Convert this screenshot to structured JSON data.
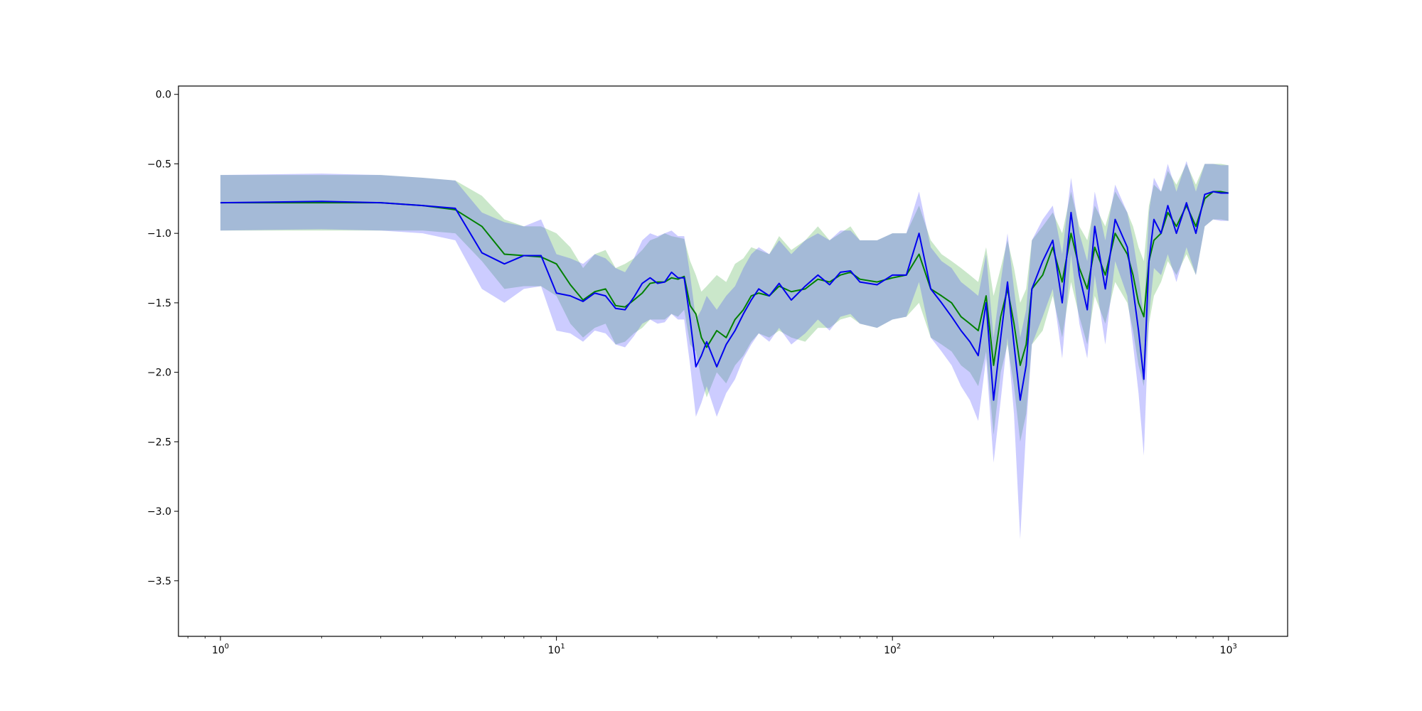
{
  "chart_data": {
    "type": "line",
    "title": "",
    "xlabel": "",
    "ylabel": "",
    "xscale": "log",
    "xlim": [
      0.75,
      1500
    ],
    "ylim": [
      -3.9,
      0.06
    ],
    "grid": false,
    "y_ticks": [
      {
        "value": 0.0,
        "label": "0.0"
      },
      {
        "value": -0.5,
        "label": "−0.5"
      },
      {
        "value": -1.0,
        "label": "−1.0"
      },
      {
        "value": -1.5,
        "label": "−1.5"
      },
      {
        "value": -2.0,
        "label": "−2.0"
      },
      {
        "value": -2.5,
        "label": "−2.5"
      },
      {
        "value": -3.0,
        "label": "−3.0"
      },
      {
        "value": -3.5,
        "label": "−3.5"
      }
    ],
    "x_ticks": [
      {
        "value": 1,
        "base": "10",
        "exp": "0"
      },
      {
        "value": 10,
        "base": "10",
        "exp": "1"
      },
      {
        "value": 100,
        "base": "10",
        "exp": "2"
      },
      {
        "value": 1000,
        "base": "10",
        "exp": "3"
      }
    ],
    "series": [
      {
        "color": "#008000",
        "band_color": "#2ca02c",
        "band_opacity": 0.25,
        "x": [
          1,
          2,
          3,
          4,
          5,
          6,
          7,
          8,
          9,
          10,
          11,
          12,
          13,
          14,
          15,
          16,
          17,
          18,
          19,
          20,
          21,
          22,
          23,
          24,
          25,
          26,
          27,
          28,
          30,
          32,
          34,
          36,
          38,
          40,
          43,
          46,
          50,
          55,
          60,
          65,
          70,
          75,
          80,
          90,
          100,
          110,
          120,
          130,
          140,
          150,
          160,
          170,
          180,
          190,
          200,
          210,
          220,
          230,
          240,
          250,
          260,
          280,
          300,
          320,
          340,
          360,
          380,
          400,
          430,
          460,
          500,
          520,
          540,
          560,
          580,
          600,
          630,
          660,
          700,
          750,
          800,
          850,
          900,
          950,
          1000
        ],
        "y": [
          -0.78,
          -0.78,
          -0.78,
          -0.8,
          -0.83,
          -0.95,
          -1.15,
          -1.16,
          -1.17,
          -1.22,
          -1.37,
          -1.48,
          -1.42,
          -1.4,
          -1.52,
          -1.53,
          -1.48,
          -1.43,
          -1.36,
          -1.35,
          -1.35,
          -1.32,
          -1.33,
          -1.31,
          -1.52,
          -1.58,
          -1.75,
          -1.82,
          -1.7,
          -1.75,
          -1.62,
          -1.55,
          -1.45,
          -1.43,
          -1.45,
          -1.38,
          -1.42,
          -1.4,
          -1.33,
          -1.35,
          -1.3,
          -1.28,
          -1.33,
          -1.35,
          -1.32,
          -1.3,
          -1.15,
          -1.4,
          -1.45,
          -1.5,
          -1.6,
          -1.65,
          -1.7,
          -1.45,
          -1.95,
          -1.6,
          -1.4,
          -1.65,
          -1.95,
          -1.8,
          -1.4,
          -1.3,
          -1.1,
          -1.35,
          -1.0,
          -1.25,
          -1.4,
          -1.1,
          -1.3,
          -1.0,
          -1.15,
          -1.3,
          -1.5,
          -1.6,
          -1.2,
          -1.05,
          -1.0,
          -0.85,
          -0.95,
          -0.8,
          -0.95,
          -0.75,
          -0.7,
          -0.7,
          -0.71
        ],
        "upper": [
          -0.58,
          -0.58,
          -0.58,
          -0.6,
          -0.62,
          -0.73,
          -0.9,
          -0.95,
          -0.95,
          -1.0,
          -1.1,
          -1.25,
          -1.15,
          -1.12,
          -1.25,
          -1.22,
          -1.18,
          -1.12,
          -1.05,
          -1.03,
          -1.0,
          -1.02,
          -1.03,
          -1.04,
          -1.2,
          -1.3,
          -1.42,
          -1.38,
          -1.3,
          -1.35,
          -1.22,
          -1.18,
          -1.1,
          -1.12,
          -1.15,
          -1.02,
          -1.12,
          -1.05,
          -0.95,
          -1.05,
          -1.0,
          -0.95,
          -1.05,
          -1.05,
          -1.0,
          -1.0,
          -0.8,
          -1.05,
          -1.15,
          -1.2,
          -1.25,
          -1.3,
          -1.35,
          -1.1,
          -1.45,
          -1.25,
          -1.05,
          -1.25,
          -1.5,
          -1.4,
          -1.05,
          -0.95,
          -0.85,
          -1.0,
          -0.7,
          -0.95,
          -1.05,
          -0.8,
          -0.95,
          -0.7,
          -0.85,
          -0.95,
          -1.1,
          -1.2,
          -0.8,
          -0.65,
          -0.7,
          -0.55,
          -0.65,
          -0.5,
          -0.65,
          -0.5,
          -0.5,
          -0.5,
          -0.51
        ],
        "lower": [
          -0.98,
          -0.98,
          -0.98,
          -0.98,
          -1.0,
          -1.2,
          -1.4,
          -1.38,
          -1.38,
          -1.45,
          -1.65,
          -1.75,
          -1.68,
          -1.65,
          -1.8,
          -1.78,
          -1.72,
          -1.68,
          -1.62,
          -1.62,
          -1.62,
          -1.58,
          -1.6,
          -1.55,
          -1.8,
          -1.85,
          -2.05,
          -2.18,
          -2.0,
          -2.08,
          -1.95,
          -1.88,
          -1.78,
          -1.72,
          -1.75,
          -1.7,
          -1.75,
          -1.78,
          -1.68,
          -1.68,
          -1.62,
          -1.6,
          -1.65,
          -1.68,
          -1.62,
          -1.6,
          -1.5,
          -1.75,
          -1.8,
          -1.85,
          -1.95,
          -2.0,
          -2.1,
          -1.85,
          -2.45,
          -2.0,
          -1.8,
          -2.1,
          -2.5,
          -2.3,
          -1.8,
          -1.7,
          -1.45,
          -1.75,
          -1.35,
          -1.6,
          -1.8,
          -1.45,
          -1.65,
          -1.35,
          -1.5,
          -1.7,
          -1.95,
          -2.1,
          -1.65,
          -1.45,
          -1.35,
          -1.2,
          -1.3,
          -1.15,
          -1.3,
          -0.95,
          -0.9,
          -0.9,
          -0.91
        ]
      },
      {
        "color": "#0000ee",
        "band_color": "#3333ff",
        "band_opacity": 0.25,
        "x": [
          1,
          2,
          3,
          4,
          5,
          6,
          7,
          8,
          9,
          10,
          11,
          12,
          13,
          14,
          15,
          16,
          17,
          18,
          19,
          20,
          21,
          22,
          23,
          24,
          25,
          26,
          27,
          28,
          30,
          32,
          34,
          36,
          38,
          40,
          43,
          46,
          50,
          55,
          60,
          65,
          70,
          75,
          80,
          90,
          100,
          110,
          120,
          130,
          140,
          150,
          160,
          170,
          180,
          190,
          200,
          210,
          220,
          230,
          240,
          250,
          260,
          280,
          300,
          320,
          340,
          360,
          380,
          400,
          430,
          460,
          500,
          520,
          540,
          560,
          580,
          600,
          630,
          660,
          700,
          750,
          800,
          850,
          900,
          950,
          1000
        ],
        "y": [
          -0.78,
          -0.77,
          -0.78,
          -0.8,
          -0.82,
          -1.14,
          -1.22,
          -1.16,
          -1.16,
          -1.43,
          -1.45,
          -1.49,
          -1.43,
          -1.45,
          -1.54,
          -1.55,
          -1.46,
          -1.36,
          -1.32,
          -1.36,
          -1.35,
          -1.28,
          -1.32,
          -1.32,
          -1.62,
          -1.96,
          -1.88,
          -1.78,
          -1.96,
          -1.8,
          -1.7,
          -1.58,
          -1.48,
          -1.4,
          -1.45,
          -1.36,
          -1.48,
          -1.38,
          -1.3,
          -1.37,
          -1.28,
          -1.27,
          -1.35,
          -1.37,
          -1.3,
          -1.3,
          -1.0,
          -1.4,
          -1.5,
          -1.6,
          -1.7,
          -1.78,
          -1.88,
          -1.5,
          -2.2,
          -1.75,
          -1.35,
          -1.8,
          -2.2,
          -1.95,
          -1.4,
          -1.2,
          -1.05,
          -1.5,
          -0.85,
          -1.3,
          -1.55,
          -0.95,
          -1.4,
          -0.9,
          -1.1,
          -1.4,
          -1.7,
          -2.05,
          -1.2,
          -0.9,
          -1.0,
          -0.8,
          -1.0,
          -0.78,
          -1.0,
          -0.72,
          -0.7,
          -0.71,
          -0.71
        ],
        "upper": [
          -0.58,
          -0.57,
          -0.58,
          -0.6,
          -0.62,
          -0.85,
          -0.92,
          -0.95,
          -0.9,
          -1.15,
          -1.18,
          -1.22,
          -1.15,
          -1.18,
          -1.25,
          -1.28,
          -1.18,
          -1.05,
          -1.0,
          -1.02,
          -1.0,
          -0.98,
          -1.02,
          -1.02,
          -1.3,
          -1.62,
          -1.55,
          -1.45,
          -1.55,
          -1.45,
          -1.38,
          -1.25,
          -1.15,
          -1.1,
          -1.15,
          -1.05,
          -1.15,
          -1.05,
          -1.0,
          -1.05,
          -0.98,
          -0.98,
          -1.05,
          -1.05,
          -1.0,
          -1.0,
          -0.7,
          -1.1,
          -1.2,
          -1.25,
          -1.35,
          -1.4,
          -1.45,
          -1.15,
          -1.75,
          -1.35,
          -1.0,
          -1.4,
          -1.75,
          -1.55,
          -1.05,
          -0.9,
          -0.8,
          -1.15,
          -0.6,
          -1.0,
          -1.2,
          -0.7,
          -1.05,
          -0.65,
          -0.85,
          -1.05,
          -1.3,
          -1.6,
          -0.85,
          -0.6,
          -0.7,
          -0.5,
          -0.7,
          -0.48,
          -0.7,
          -0.5,
          -0.5,
          -0.51,
          -0.51
        ],
        "lower": [
          -0.98,
          -0.97,
          -0.98,
          -1.0,
          -1.05,
          -1.4,
          -1.5,
          -1.4,
          -1.38,
          -1.7,
          -1.72,
          -1.78,
          -1.7,
          -1.72,
          -1.8,
          -1.82,
          -1.74,
          -1.65,
          -1.62,
          -1.65,
          -1.64,
          -1.58,
          -1.62,
          -1.62,
          -1.95,
          -2.32,
          -2.22,
          -2.1,
          -2.32,
          -2.15,
          -2.05,
          -1.9,
          -1.8,
          -1.72,
          -1.78,
          -1.68,
          -1.8,
          -1.72,
          -1.62,
          -1.7,
          -1.6,
          -1.58,
          -1.65,
          -1.68,
          -1.62,
          -1.6,
          -1.35,
          -1.75,
          -1.85,
          -1.95,
          -2.1,
          -2.2,
          -2.35,
          -1.9,
          -2.65,
          -2.2,
          -1.75,
          -2.3,
          -3.2,
          -2.4,
          -1.8,
          -1.6,
          -1.4,
          -1.9,
          -1.15,
          -1.65,
          -1.9,
          -1.3,
          -1.8,
          -1.2,
          -1.45,
          -1.8,
          -2.15,
          -2.6,
          -1.6,
          -1.25,
          -1.3,
          -1.15,
          -1.35,
          -1.1,
          -1.3,
          -0.95,
          -0.9,
          -0.91,
          -0.91
        ]
      }
    ]
  }
}
